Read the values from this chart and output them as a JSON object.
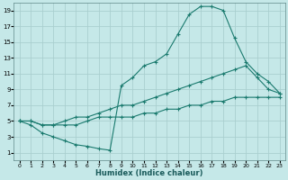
{
  "xlabel": "Humidex (Indice chaleur)",
  "bg_color": "#c5e8e8",
  "grid_color": "#aacfcf",
  "line_color": "#1a7a6e",
  "xlim": [
    -0.5,
    23.5
  ],
  "ylim": [
    0,
    20
  ],
  "xticks": [
    0,
    1,
    2,
    3,
    4,
    5,
    6,
    7,
    8,
    9,
    10,
    11,
    12,
    13,
    14,
    15,
    16,
    17,
    18,
    19,
    20,
    21,
    22,
    23
  ],
  "yticks": [
    1,
    3,
    5,
    7,
    9,
    11,
    13,
    15,
    17,
    19
  ],
  "curve1_x": [
    0,
    1,
    2,
    3,
    4,
    5,
    6,
    7,
    8,
    9,
    10,
    11,
    12,
    13,
    14,
    15,
    16,
    17,
    18,
    19,
    20,
    21,
    22,
    23
  ],
  "curve1_y": [
    5,
    4.5,
    3.5,
    3.0,
    2.5,
    2.0,
    1.8,
    1.5,
    1.3,
    9.5,
    10.5,
    12.0,
    12.5,
    13.5,
    16.0,
    18.5,
    19.5,
    19.5,
    19.0,
    15.5,
    12.5,
    11.0,
    10.0,
    8.5
  ],
  "curve2_x": [
    0,
    1,
    2,
    3,
    4,
    5,
    6,
    7,
    8,
    9,
    10,
    11,
    12,
    13,
    14,
    15,
    16,
    17,
    18,
    19,
    20,
    21,
    22,
    23
  ],
  "curve2_y": [
    5.0,
    5.0,
    4.5,
    4.5,
    5.0,
    5.5,
    5.5,
    6.0,
    6.5,
    7.0,
    7.0,
    7.5,
    8.0,
    8.5,
    9.0,
    9.5,
    10.0,
    10.5,
    11.0,
    11.5,
    12.0,
    10.5,
    9.0,
    8.5
  ],
  "curve3_x": [
    0,
    1,
    2,
    3,
    4,
    5,
    6,
    7,
    8,
    9,
    10,
    11,
    12,
    13,
    14,
    15,
    16,
    17,
    18,
    19,
    20,
    21,
    22,
    23
  ],
  "curve3_y": [
    5.0,
    5.0,
    4.5,
    4.5,
    4.5,
    4.5,
    5.0,
    5.5,
    5.5,
    5.5,
    5.5,
    6.0,
    6.0,
    6.5,
    6.5,
    7.0,
    7.0,
    7.5,
    7.5,
    8.0,
    8.0,
    8.0,
    8.0,
    8.0
  ]
}
